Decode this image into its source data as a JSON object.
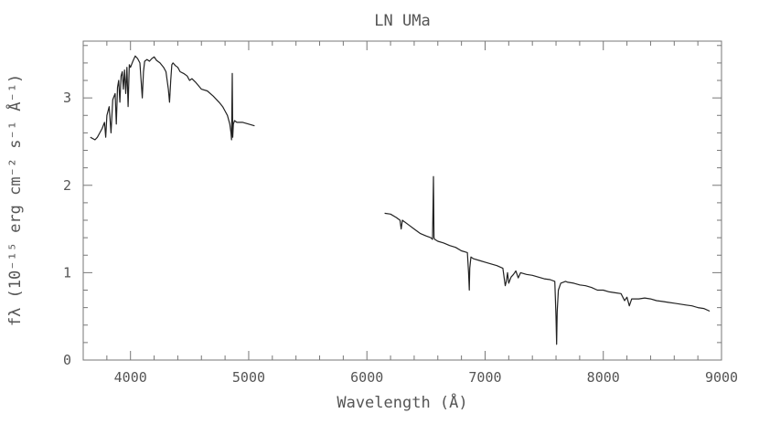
{
  "chart_data": {
    "type": "line",
    "title": "LN UMa",
    "xlabel": "Wavelength (Å)",
    "ylabel": "fλ (10⁻¹⁵ erg cm⁻² s⁻¹ Å⁻¹)",
    "xlim": [
      3600,
      9000
    ],
    "ylim": [
      0,
      3.65
    ],
    "xticks": [
      4000,
      5000,
      6000,
      7000,
      8000,
      9000
    ],
    "yticks": [
      0,
      1,
      2,
      3
    ],
    "grid": false,
    "series": [
      {
        "segment": "blue",
        "x": [
          3660,
          3700,
          3720,
          3740,
          3760,
          3780,
          3790,
          3800,
          3820,
          3835,
          3850,
          3870,
          3880,
          3890,
          3900,
          3910,
          3920,
          3930,
          3940,
          3950,
          3960,
          3970,
          3980,
          3990,
          4000,
          4020,
          4040,
          4060,
          4080,
          4090,
          4100,
          4110,
          4120,
          4140,
          4160,
          4180,
          4200,
          4220,
          4250,
          4280,
          4300,
          4320,
          4330,
          4340,
          4350,
          4360,
          4380,
          4400,
          4420,
          4450,
          4480,
          4500,
          4520,
          4550,
          4600,
          4650,
          4700,
          4750,
          4780,
          4800,
          4820,
          4840,
          4850,
          4855,
          4861,
          4865,
          4870,
          4880,
          4900,
          4950,
          5000,
          5050
        ],
        "y": [
          2.55,
          2.52,
          2.55,
          2.6,
          2.65,
          2.72,
          2.55,
          2.8,
          2.9,
          2.6,
          2.98,
          3.05,
          2.7,
          3.12,
          3.2,
          2.95,
          3.25,
          3.3,
          3.1,
          3.32,
          3.05,
          3.35,
          2.9,
          3.38,
          3.35,
          3.42,
          3.48,
          3.45,
          3.4,
          3.2,
          3.0,
          3.3,
          3.42,
          3.44,
          3.42,
          3.45,
          3.47,
          3.43,
          3.4,
          3.35,
          3.3,
          3.1,
          2.95,
          3.2,
          3.38,
          3.4,
          3.37,
          3.35,
          3.3,
          3.28,
          3.25,
          3.2,
          3.22,
          3.18,
          3.1,
          3.08,
          3.02,
          2.95,
          2.9,
          2.85,
          2.8,
          2.7,
          2.6,
          2.52,
          3.28,
          2.55,
          2.7,
          2.74,
          2.72,
          2.72,
          2.7,
          2.68
        ]
      },
      {
        "segment": "red",
        "x": [
          6150,
          6200,
          6250,
          6280,
          6290,
          6300,
          6350,
          6400,
          6450,
          6500,
          6540,
          6555,
          6563,
          6568,
          6575,
          6600,
          6650,
          6700,
          6750,
          6800,
          6850,
          6860,
          6866,
          6870,
          6880,
          6900,
          6950,
          7000,
          7050,
          7100,
          7150,
          7170,
          7180,
          7190,
          7200,
          7220,
          7240,
          7260,
          7280,
          7300,
          7350,
          7400,
          7450,
          7500,
          7550,
          7590,
          7600,
          7605,
          7610,
          7620,
          7640,
          7680,
          7700,
          7750,
          7800,
          7850,
          7900,
          7950,
          8000,
          8050,
          8100,
          8150,
          8180,
          8200,
          8220,
          8240,
          8260,
          8300,
          8350,
          8400,
          8450,
          8500,
          8550,
          8600,
          8650,
          8700,
          8750,
          8800,
          8850,
          8900
        ],
        "y": [
          1.68,
          1.67,
          1.63,
          1.6,
          1.5,
          1.6,
          1.55,
          1.5,
          1.45,
          1.42,
          1.4,
          1.38,
          2.1,
          1.4,
          1.38,
          1.36,
          1.34,
          1.31,
          1.29,
          1.25,
          1.23,
          1.0,
          0.8,
          1.05,
          1.18,
          1.16,
          1.14,
          1.12,
          1.1,
          1.08,
          1.05,
          0.85,
          0.9,
          1.0,
          0.88,
          0.95,
          0.98,
          1.02,
          0.94,
          1.0,
          0.98,
          0.97,
          0.95,
          0.93,
          0.92,
          0.9,
          0.5,
          0.18,
          0.55,
          0.8,
          0.88,
          0.9,
          0.89,
          0.88,
          0.86,
          0.85,
          0.83,
          0.8,
          0.8,
          0.78,
          0.77,
          0.76,
          0.68,
          0.72,
          0.62,
          0.7,
          0.7,
          0.7,
          0.71,
          0.7,
          0.68,
          0.67,
          0.66,
          0.65,
          0.64,
          0.63,
          0.62,
          0.6,
          0.59,
          0.56
        ]
      }
    ]
  }
}
